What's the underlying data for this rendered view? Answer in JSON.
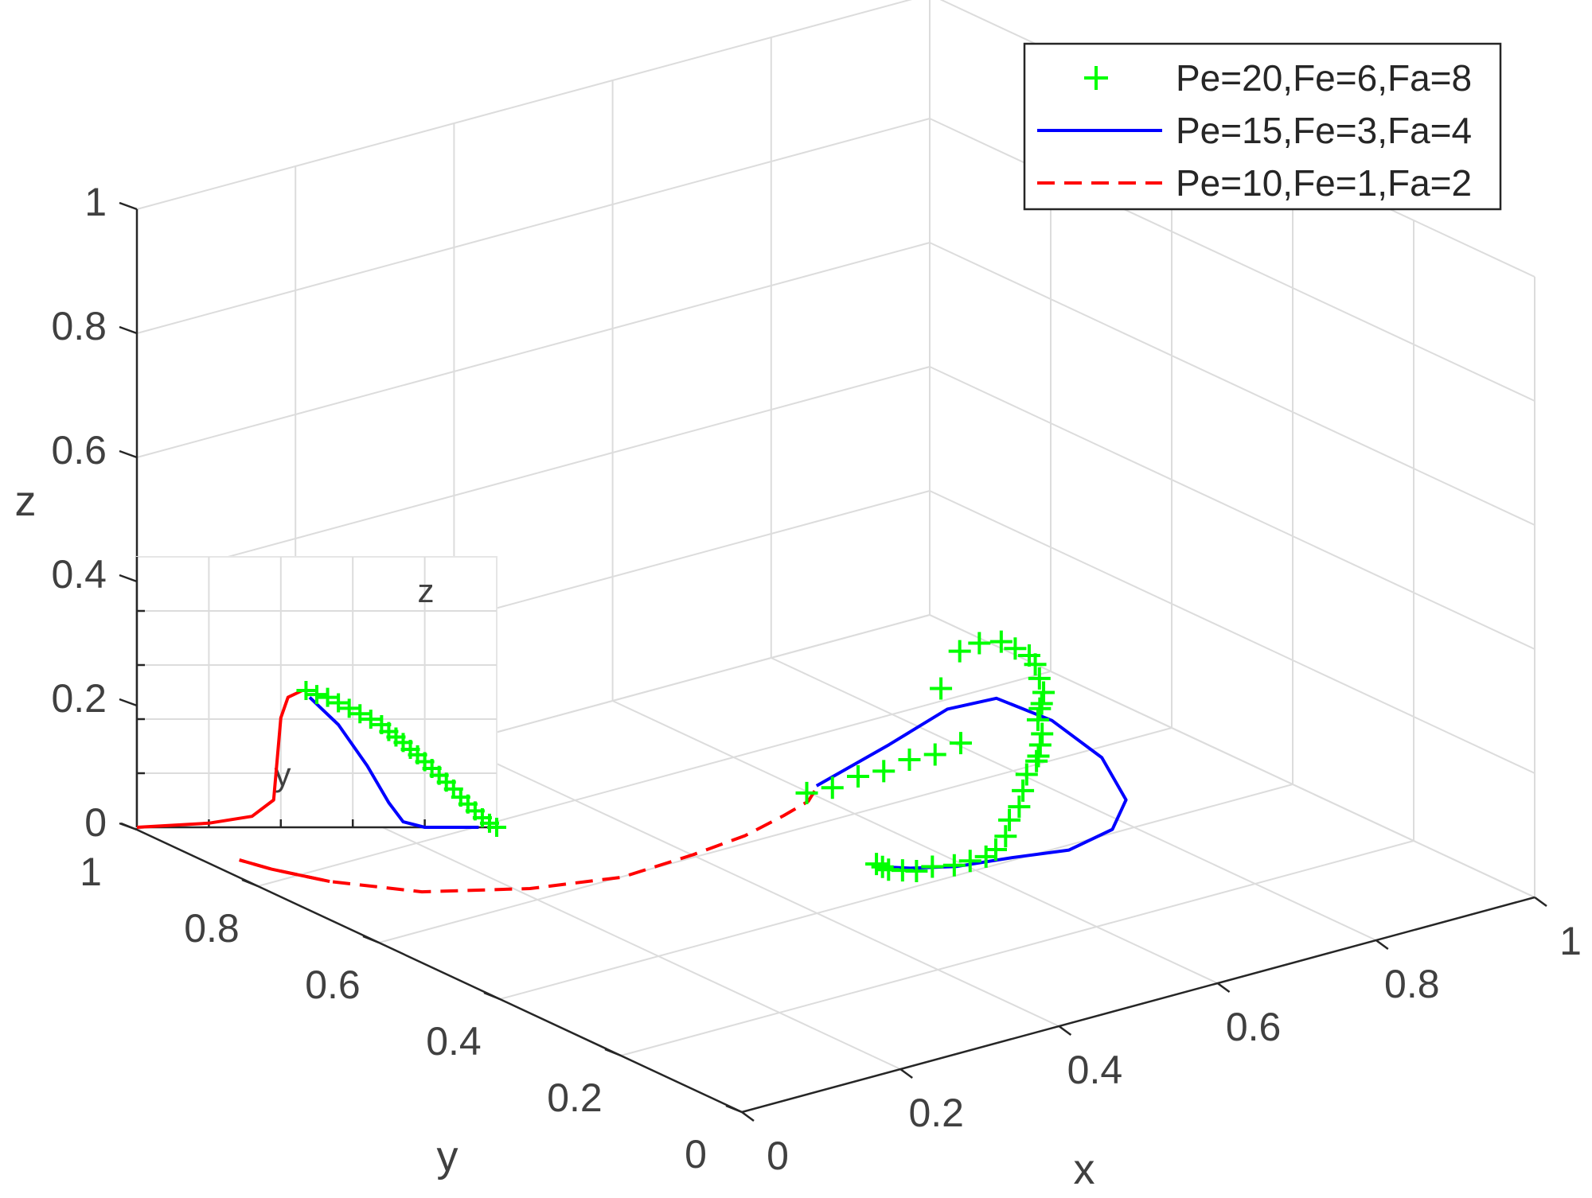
{
  "chart_data": {
    "type": "line",
    "projection": "3d",
    "xlabel": "x",
    "ylabel": "y",
    "zlabel": "z",
    "xlim": [
      0,
      1
    ],
    "ylim": [
      0,
      1
    ],
    "zlim": [
      0,
      1
    ],
    "x_ticks": [
      "0",
      "0.2",
      "0.4",
      "0.6",
      "0.8",
      "1"
    ],
    "y_ticks": [
      "0",
      "0.2",
      "0.4",
      "0.6",
      "0.8",
      "1"
    ],
    "z_ticks": [
      "0",
      "0.2",
      "0.4",
      "0.6",
      "0.8",
      "1"
    ],
    "grid": true,
    "legend_position": "top-right",
    "series": [
      {
        "name": "Pe=20,Fe=6,Fa=8",
        "color": "#00ff00",
        "style": "markers-plus",
        "points": [
          [
            0.12,
            0.05,
            0.45
          ],
          [
            0.16,
            0.06,
            0.44
          ],
          [
            0.2,
            0.07,
            0.44
          ],
          [
            0.24,
            0.08,
            0.43
          ],
          [
            0.28,
            0.09,
            0.43
          ],
          [
            0.32,
            0.1,
            0.42
          ],
          [
            0.36,
            0.11,
            0.42
          ],
          [
            0.48,
            0.3,
            0.38
          ],
          [
            0.58,
            0.4,
            0.36
          ],
          [
            0.62,
            0.42,
            0.35
          ],
          [
            0.64,
            0.41,
            0.35
          ],
          [
            0.65,
            0.4,
            0.34
          ],
          [
            0.66,
            0.39,
            0.33
          ],
          [
            0.66,
            0.38,
            0.32
          ],
          [
            0.65,
            0.36,
            0.31
          ],
          [
            0.64,
            0.34,
            0.3
          ],
          [
            0.63,
            0.33,
            0.29
          ],
          [
            0.62,
            0.32,
            0.29
          ],
          [
            0.61,
            0.31,
            0.28
          ],
          [
            0.6,
            0.29,
            0.27
          ],
          [
            0.59,
            0.28,
            0.26
          ],
          [
            0.58,
            0.27,
            0.25
          ],
          [
            0.57,
            0.26,
            0.25
          ],
          [
            0.55,
            0.25,
            0.24
          ],
          [
            0.53,
            0.23,
            0.23
          ],
          [
            0.51,
            0.21,
            0.22
          ],
          [
            0.49,
            0.2,
            0.21
          ],
          [
            0.47,
            0.18,
            0.2
          ],
          [
            0.45,
            0.17,
            0.19
          ],
          [
            0.43,
            0.16,
            0.19
          ],
          [
            0.41,
            0.16,
            0.19
          ],
          [
            0.39,
            0.16,
            0.19
          ],
          [
            0.37,
            0.17,
            0.19
          ],
          [
            0.35,
            0.17,
            0.19
          ],
          [
            0.34,
            0.18,
            0.19
          ],
          [
            0.33,
            0.19,
            0.19
          ],
          [
            0.33,
            0.2,
            0.19
          ],
          [
            0.33,
            0.21,
            0.19
          ]
        ]
      },
      {
        "name": "Pe=15,Fe=3,Fa=4",
        "color": "#0000ff",
        "style": "solid",
        "points": [
          [
            0.14,
            0.06,
            0.45
          ],
          [
            0.3,
            0.15,
            0.42
          ],
          [
            0.45,
            0.25,
            0.38
          ],
          [
            0.55,
            0.3,
            0.34
          ],
          [
            0.62,
            0.3,
            0.28
          ],
          [
            0.66,
            0.27,
            0.22
          ],
          [
            0.66,
            0.23,
            0.17
          ],
          [
            0.62,
            0.2,
            0.15
          ],
          [
            0.55,
            0.18,
            0.15
          ],
          [
            0.47,
            0.17,
            0.17
          ],
          [
            0.4,
            0.17,
            0.18
          ],
          [
            0.35,
            0.18,
            0.19
          ],
          [
            0.33,
            0.2,
            0.19
          ]
        ]
      },
      {
        "name": "Pe=10,Fe=1,Fa=2",
        "color": "#ff0000",
        "style": "dashed",
        "points": [
          [
            0.13,
            0.05,
            0.45
          ],
          [
            0.16,
            0.1,
            0.4
          ],
          [
            0.19,
            0.18,
            0.33
          ],
          [
            0.21,
            0.27,
            0.25
          ],
          [
            0.22,
            0.37,
            0.17
          ],
          [
            0.2,
            0.46,
            0.1
          ],
          [
            0.16,
            0.56,
            0.05
          ],
          [
            0.1,
            0.66,
            0.02
          ],
          [
            0.06,
            0.76,
            0.005
          ],
          [
            0.04,
            0.83,
            0.0
          ],
          [
            0.03,
            0.87,
            0.0
          ]
        ]
      }
    ],
    "inset": {
      "xlabel": "y",
      "zlabel": "z",
      "series": [
        {
          "name": "Pe=10,Fe=1,Fa=2",
          "color": "#ff0000",
          "points": [
            [
              0,
              0.0
            ],
            [
              0.2,
              0.03
            ],
            [
              0.32,
              0.08
            ],
            [
              0.38,
              0.2
            ],
            [
              0.4,
              0.8
            ],
            [
              0.42,
              0.95
            ],
            [
              0.46,
              1.0
            ]
          ]
        },
        {
          "name": "Pe=15,Fe=3,Fa=4",
          "color": "#0000ff",
          "points": [
            [
              0.48,
              0.95
            ],
            [
              0.56,
              0.75
            ],
            [
              0.64,
              0.45
            ],
            [
              0.7,
              0.18
            ],
            [
              0.74,
              0.04
            ],
            [
              0.8,
              0.0
            ],
            [
              0.95,
              0.0
            ]
          ]
        },
        {
          "name": "Pe=20,Fe=6,Fa=8",
          "color": "#00ff00",
          "points": [
            [
              0.47,
              1.0
            ],
            [
              0.5,
              0.97
            ],
            [
              0.53,
              0.95
            ],
            [
              0.56,
              0.91
            ],
            [
              0.59,
              0.87
            ],
            [
              0.62,
              0.83
            ],
            [
              0.65,
              0.79
            ],
            [
              0.68,
              0.75
            ],
            [
              0.7,
              0.7
            ],
            [
              0.72,
              0.66
            ],
            [
              0.74,
              0.62
            ],
            [
              0.76,
              0.57
            ],
            [
              0.78,
              0.53
            ],
            [
              0.8,
              0.48
            ],
            [
              0.82,
              0.43
            ],
            [
              0.84,
              0.38
            ],
            [
              0.86,
              0.33
            ],
            [
              0.88,
              0.28
            ],
            [
              0.9,
              0.22
            ],
            [
              0.92,
              0.17
            ],
            [
              0.94,
              0.12
            ],
            [
              0.96,
              0.07
            ],
            [
              0.98,
              0.03
            ],
            [
              1.0,
              0.0
            ]
          ]
        }
      ]
    }
  }
}
